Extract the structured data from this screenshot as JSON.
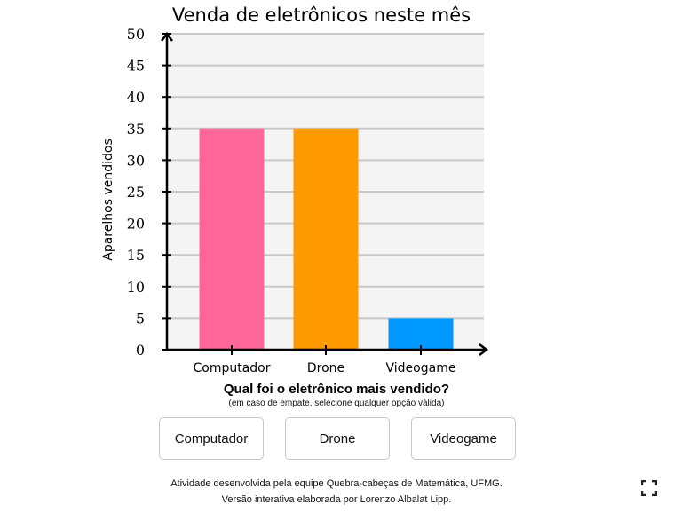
{
  "question": "Qual foi o eletrônico mais vendido?",
  "hint": "(em caso de empate, selecione qualquer opção válida)",
  "options": [
    "Computador",
    "Drone",
    "Videogame"
  ],
  "credits": {
    "line1": "Atividade desenvolvida pela equipe Quebra-cabeças de Matemática, UFMG.",
    "line2": "Versão interativa elaborada por Lorenzo Albalat Lipp."
  },
  "icons": {
    "fullscreen": "fullscreen-icon"
  },
  "chart_data": {
    "type": "bar",
    "title": "Venda de eletrônicos neste mês",
    "xlabel": "",
    "ylabel": "Aparelhos vendidos",
    "categories": [
      "Computador",
      "Drone",
      "Videogame"
    ],
    "values": [
      35,
      35,
      5
    ],
    "colors": [
      "#ff6699",
      "#ff9900",
      "#0099ff"
    ],
    "ylim": [
      0,
      50
    ],
    "yticks": [
      0,
      5,
      10,
      15,
      20,
      25,
      30,
      35,
      40,
      45,
      50
    ],
    "grid": true,
    "plot_background": "#f4f4f4",
    "gridline_color": "#c8c8c8"
  }
}
